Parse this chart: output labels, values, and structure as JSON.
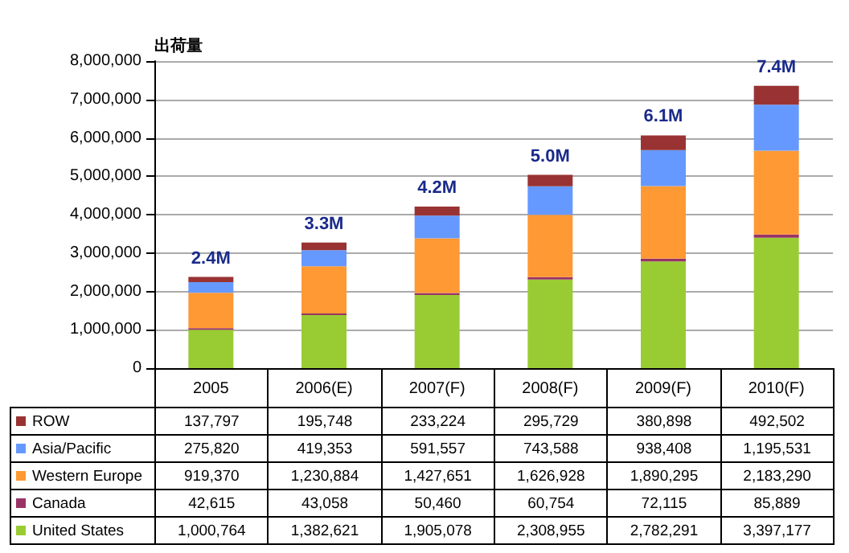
{
  "chart_data": {
    "type": "bar",
    "stacked": true,
    "ylabel": "出荷量",
    "categories": [
      "2005",
      "2006(E)",
      "2007(F)",
      "2008(F)",
      "2009(F)",
      "2010(F)"
    ],
    "series": [
      {
        "name": "United States",
        "color": "#99cc33",
        "values": [
          1000764,
          1382621,
          1905078,
          2308955,
          2782291,
          3397177
        ],
        "value_labels": [
          "1,000,764",
          "1,382,621",
          "1,905,078",
          "2,308,955",
          "2,782,291",
          "3,397,177"
        ]
      },
      {
        "name": "Canada",
        "color": "#993366",
        "values": [
          42615,
          43058,
          50460,
          60754,
          72115,
          85889
        ],
        "value_labels": [
          "42,615",
          "43,058",
          "50,460",
          "60,754",
          "72,115",
          "85,889"
        ]
      },
      {
        "name": "Western Europe",
        "color": "#ff9933",
        "values": [
          919370,
          1230884,
          1427651,
          1626928,
          1890295,
          2183290
        ],
        "value_labels": [
          "919,370",
          "1,230,884",
          "1,427,651",
          "1,626,928",
          "1,890,295",
          "2,183,290"
        ]
      },
      {
        "name": "Asia/Pacific",
        "color": "#6699ff",
        "values": [
          275820,
          419353,
          591557,
          743588,
          938408,
          1195531
        ],
        "value_labels": [
          "275,820",
          "419,353",
          "591,557",
          "743,588",
          "938,408",
          "1,195,531"
        ]
      },
      {
        "name": "ROW",
        "color": "#993333",
        "values": [
          137797,
          195748,
          233224,
          295729,
          380898,
          492502
        ],
        "value_labels": [
          "137,797",
          "195,748",
          "233,224",
          "295,729",
          "380,898",
          "492,502"
        ]
      }
    ],
    "totals": [
      "2.4M",
      "3.3M",
      "4.2M",
      "5.0M",
      "6.1M",
      "7.4M"
    ],
    "ylim": [
      0,
      8000000
    ],
    "yticks": [
      0,
      {
        "value": 1000000,
        "label": "1,000,000"
      },
      {
        "value": 2000000,
        "label": "2,000,000"
      },
      {
        "value": 3000000,
        "label": "3,000,000"
      },
      {
        "value": 4000000,
        "label": "4,000,000"
      },
      {
        "value": 5000000,
        "label": "5,000,000"
      },
      {
        "value": 6000000,
        "label": "6,000,000"
      },
      {
        "value": 7000000,
        "label": "7,000,000"
      },
      {
        "value": 8000000,
        "label": "8,000,000"
      }
    ],
    "grid": "y",
    "legend": "bottom left"
  }
}
